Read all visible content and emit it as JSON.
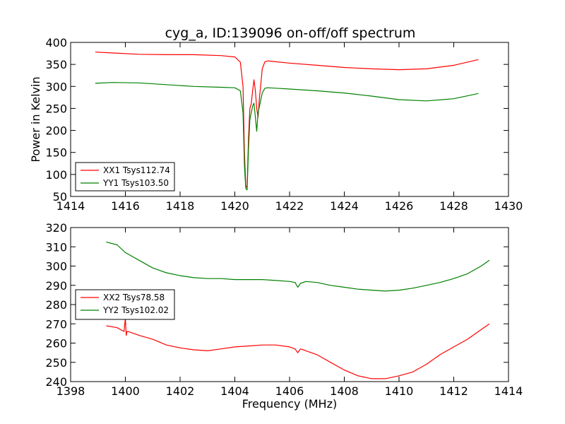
{
  "figure_title": "cyg_a, ID:139096 on-off/off spectrum",
  "colors": {
    "series_red": "#ff0000",
    "series_green": "#008000",
    "axes": "#000000",
    "background": "#ffffff"
  },
  "chart_data": [
    {
      "type": "line",
      "title": "cyg_a, ID:139096 on-off/off spectrum",
      "xlabel": "",
      "ylabel": "Power in Kelvin",
      "xlim": [
        1414,
        1430
      ],
      "ylim": [
        50,
        400
      ],
      "xticks": [
        1414,
        1416,
        1418,
        1420,
        1422,
        1424,
        1426,
        1428,
        1430
      ],
      "yticks": [
        50,
        100,
        150,
        200,
        250,
        300,
        350,
        400
      ],
      "legend_location": "lower-left",
      "series": [
        {
          "name": "XX1 Tsys112.74",
          "color": "#ff0000",
          "x": [
            1414.9,
            1415.5,
            1416.5,
            1417.5,
            1418.5,
            1419.5,
            1420.0,
            1420.2,
            1420.3,
            1420.35,
            1420.4,
            1420.45,
            1420.5,
            1420.55,
            1420.6,
            1420.65,
            1420.7,
            1420.75,
            1420.8,
            1420.85,
            1420.9,
            1420.95,
            1421.0,
            1421.1,
            1421.2,
            1421.5,
            1422.0,
            1423.0,
            1424.0,
            1425.0,
            1426.0,
            1427.0,
            1428.0,
            1428.9
          ],
          "y": [
            378,
            376,
            373,
            372,
            372,
            370,
            367,
            355,
            300,
            150,
            75,
            70,
            185,
            250,
            260,
            290,
            315,
            290,
            250,
            230,
            275,
            305,
            340,
            356,
            358,
            356,
            353,
            348,
            343,
            340,
            338,
            340,
            348,
            361
          ]
        },
        {
          "name": "YY1 Tsys103.50",
          "color": "#008000",
          "x": [
            1414.9,
            1415.5,
            1416.5,
            1417.5,
            1418.5,
            1419.5,
            1420.0,
            1420.2,
            1420.3,
            1420.35,
            1420.4,
            1420.45,
            1420.5,
            1420.55,
            1420.6,
            1420.65,
            1420.7,
            1420.75,
            1420.8,
            1420.85,
            1420.9,
            1420.95,
            1421.0,
            1421.1,
            1421.2,
            1421.5,
            1422.0,
            1423.0,
            1424.0,
            1425.0,
            1426.0,
            1427.0,
            1428.0,
            1428.9
          ],
          "y": [
            307,
            309,
            308,
            304,
            300,
            298,
            297,
            290,
            240,
            120,
            68,
            65,
            160,
            225,
            240,
            255,
            262,
            230,
            198,
            240,
            255,
            270,
            285,
            296,
            297,
            296,
            294,
            290,
            285,
            278,
            270,
            267,
            272,
            284
          ]
        }
      ]
    },
    {
      "type": "line",
      "title": "",
      "xlabel": "Frequency (MHz)",
      "ylabel": "",
      "xlim": [
        1398,
        1414
      ],
      "ylim": [
        240,
        320
      ],
      "xticks": [
        1398,
        1400,
        1402,
        1404,
        1406,
        1408,
        1410,
        1412,
        1414
      ],
      "yticks": [
        240,
        250,
        260,
        270,
        280,
        290,
        300,
        310,
        320
      ],
      "legend_location": "center-left",
      "series": [
        {
          "name": "XX2 Tsys78.58",
          "color": "#ff0000",
          "x": [
            1399.3,
            1399.7,
            1399.95,
            1400.0,
            1400.03,
            1400.06,
            1400.1,
            1400.5,
            1401.0,
            1401.5,
            1402.0,
            1402.5,
            1403.0,
            1403.5,
            1404.0,
            1404.5,
            1405.0,
            1405.5,
            1406.0,
            1406.2,
            1406.3,
            1406.4,
            1406.6,
            1407.0,
            1407.5,
            1408.0,
            1408.5,
            1409.0,
            1409.5,
            1410.0,
            1410.5,
            1411.0,
            1411.5,
            1412.0,
            1412.5,
            1413.0,
            1413.3
          ],
          "y": [
            269,
            268,
            266,
            273,
            264,
            266,
            266,
            264,
            262,
            259,
            257.5,
            256.5,
            256,
            257,
            258,
            258.5,
            259,
            259,
            258,
            257,
            255,
            257,
            256,
            254,
            250,
            246,
            243,
            241.5,
            241.5,
            243,
            245,
            249,
            254,
            258,
            262,
            267,
            270
          ]
        },
        {
          "name": "YY2 Tsys102.02",
          "color": "#008000",
          "x": [
            1399.3,
            1399.7,
            1400.0,
            1400.5,
            1401.0,
            1401.5,
            1402.0,
            1402.5,
            1403.0,
            1403.5,
            1404.0,
            1404.5,
            1405.0,
            1405.5,
            1406.0,
            1406.2,
            1406.3,
            1406.4,
            1406.6,
            1407.0,
            1407.5,
            1408.0,
            1408.5,
            1409.0,
            1409.5,
            1410.0,
            1410.5,
            1411.0,
            1411.5,
            1412.0,
            1412.5,
            1413.0,
            1413.3
          ],
          "y": [
            312.5,
            311,
            307,
            303,
            299,
            296.5,
            295,
            294,
            293.5,
            293.5,
            293,
            293,
            293,
            292.5,
            292,
            291.5,
            289,
            291,
            292,
            291.5,
            290,
            289,
            288,
            287.5,
            287,
            287.5,
            288.5,
            290,
            291.5,
            293.5,
            296,
            300,
            303
          ]
        }
      ]
    }
  ]
}
